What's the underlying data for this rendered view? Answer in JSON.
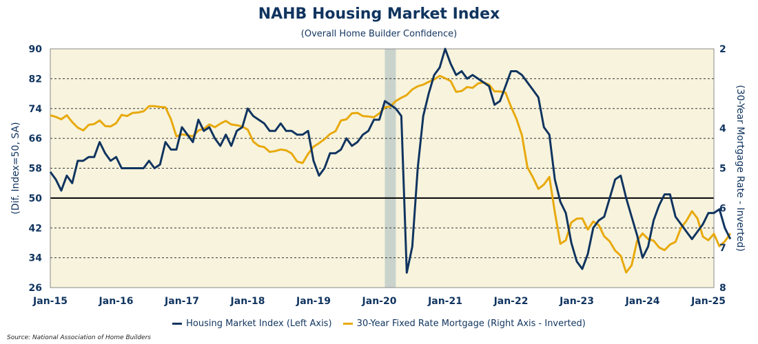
{
  "header": {
    "title": "NAHB Housing Market Index",
    "subtitle": "(Overall Home Builder Confidence)"
  },
  "source": "Source: National Association of Home Builders",
  "colors": {
    "index": "#10345f",
    "mortgage": "#e8a90c",
    "plot_bg": "#f7f3dd",
    "recession": "#c9d3cc",
    "grid": "#000000"
  },
  "chart_data": {
    "type": "line",
    "title": "NAHB Housing Market Index",
    "subtitle": "(Overall Home Builder Confidence)",
    "x_ticks": [
      "Jan-15",
      "Jan-16",
      "Jan-17",
      "Jan-18",
      "Jan-19",
      "Jan-20",
      "Jan-21",
      "Jan-22",
      "Jan-23",
      "Jan-24",
      "Jan-25"
    ],
    "x_range": [
      "2015-01",
      "2025-02"
    ],
    "left_axis": {
      "label": "(Dif. Index=50, SA)",
      "min": 26,
      "max": 90,
      "ticks": [
        26,
        34,
        42,
        50,
        58,
        66,
        74,
        82,
        90
      ]
    },
    "right_axis": {
      "label": "(30-Year Mortgage Rate - Inverted)",
      "min": 2,
      "max": 8,
      "inverted": true,
      "ticks": [
        2,
        4,
        5,
        6,
        7,
        8
      ]
    },
    "reference_line": 50,
    "recession_shading": [
      "2020-02",
      "2020-04"
    ],
    "grid": "horizontal dashed",
    "legend_position": "bottom",
    "series": [
      {
        "name": "Housing Market Index (Left Axis)",
        "axis": "left",
        "start": "2015-01",
        "values": [
          57,
          55,
          52,
          56,
          54,
          60,
          60,
          61,
          61,
          65,
          62,
          60,
          61,
          58,
          58,
          58,
          58,
          58,
          60,
          58,
          59,
          65,
          63,
          63,
          69,
          67,
          65,
          71,
          68,
          69,
          66,
          64,
          67,
          64,
          68,
          69,
          74,
          72,
          71,
          70,
          68,
          68,
          70,
          68,
          68,
          67,
          67,
          68,
          60,
          56,
          58,
          62,
          62,
          63,
          66,
          64,
          65,
          67,
          68,
          71,
          71,
          76,
          75,
          74,
          72,
          30,
          37,
          58,
          72,
          78,
          83,
          85,
          90,
          86,
          83,
          84,
          82,
          83,
          82,
          81,
          80,
          75,
          76,
          80,
          84,
          84,
          83,
          81,
          79,
          77,
          69,
          67,
          55,
          49,
          46,
          38,
          33,
          31,
          35,
          42,
          44,
          45,
          50,
          55,
          56,
          50,
          45,
          40,
          34,
          37,
          44,
          48,
          51,
          51,
          45,
          43,
          41,
          39,
          41,
          43,
          46,
          46,
          47,
          42,
          39
        ]
      },
      {
        "name": "30-Year Fixed Rate Mortgage (Right Axis - Inverted)",
        "axis": "right",
        "start": "2015-01",
        "values": [
          3.67,
          3.71,
          3.77,
          3.67,
          3.84,
          3.98,
          4.05,
          3.91,
          3.89,
          3.8,
          3.94,
          3.95,
          3.87,
          3.66,
          3.69,
          3.61,
          3.6,
          3.57,
          3.44,
          3.44,
          3.46,
          3.47,
          3.77,
          4.2,
          4.15,
          4.17,
          4.2,
          4.05,
          4.01,
          3.9,
          3.97,
          3.88,
          3.81,
          3.9,
          3.92,
          3.95,
          4.03,
          4.33,
          4.44,
          4.47,
          4.59,
          4.57,
          4.53,
          4.55,
          4.63,
          4.83,
          4.87,
          4.64,
          4.46,
          4.37,
          4.27,
          4.14,
          4.07,
          3.8,
          3.77,
          3.62,
          3.61,
          3.69,
          3.7,
          3.72,
          3.62,
          3.47,
          3.45,
          3.31,
          3.23,
          3.16,
          3.02,
          2.94,
          2.9,
          2.83,
          2.77,
          2.68,
          2.74,
          2.81,
          3.08,
          3.06,
          2.96,
          2.98,
          2.87,
          2.84,
          2.9,
          3.07,
          3.07,
          3.1,
          3.45,
          3.76,
          4.17,
          4.98,
          5.23,
          5.52,
          5.41,
          5.22,
          6.11,
          6.9,
          6.81,
          6.36,
          6.27,
          6.26,
          6.54,
          6.34,
          6.43,
          6.71,
          6.84,
          7.07,
          7.2,
          7.62,
          7.44,
          6.82,
          6.64,
          6.78,
          6.82,
          6.99,
          7.06,
          6.92,
          6.85,
          6.5,
          6.32,
          6.08,
          6.26,
          6.72,
          6.81,
          6.65,
          6.96,
          6.84,
          6.64
        ]
      }
    ]
  }
}
